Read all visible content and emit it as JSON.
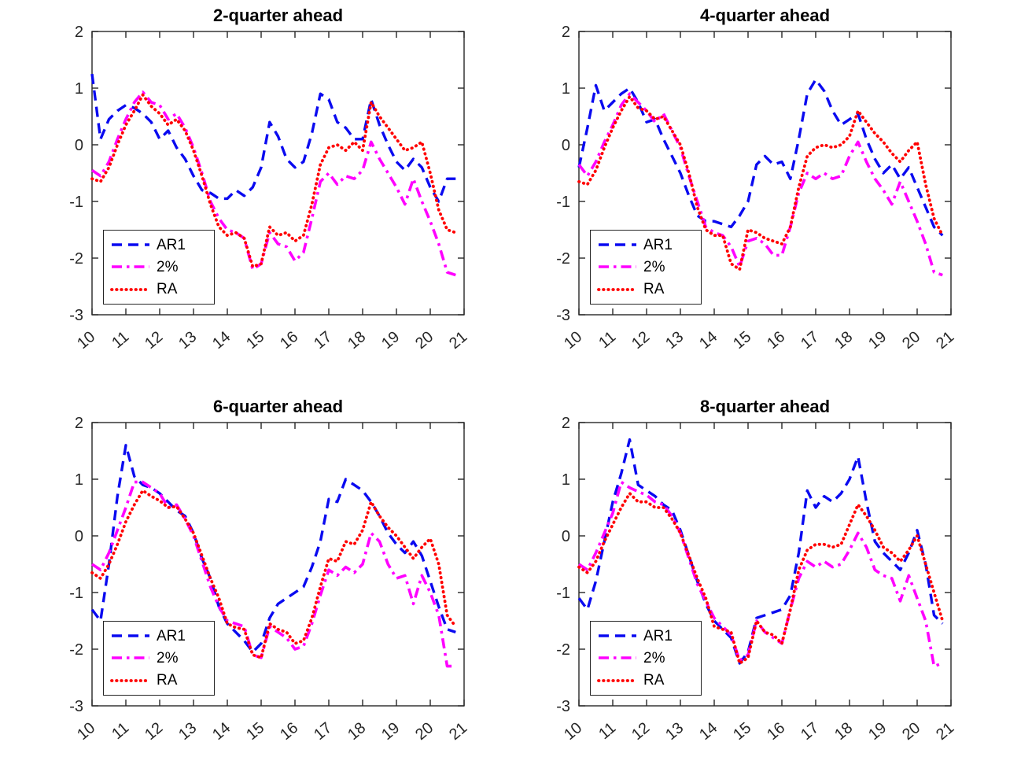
{
  "figure": {
    "background": "#ffffff",
    "axis_color": "#262626",
    "tick_label_color": "#262626",
    "title_color": "#000000"
  },
  "x_values": [
    10,
    10.25,
    10.5,
    10.75,
    11,
    11.25,
    11.5,
    11.75,
    12,
    12.25,
    12.5,
    12.75,
    13,
    13.25,
    13.5,
    13.75,
    14,
    14.25,
    14.5,
    14.75,
    15,
    15.25,
    15.5,
    15.75,
    16,
    16.25,
    16.5,
    16.75,
    17,
    17.25,
    17.5,
    17.75,
    18,
    18.25,
    18.5,
    18.75,
    19,
    19.25,
    19.5,
    19.75,
    20,
    20.25,
    20.5,
    20.75
  ],
  "chart_data": [
    {
      "type": "line",
      "title": "2-quarter ahead",
      "xlim": [
        10,
        21
      ],
      "ylim": [
        -3,
        2
      ],
      "xticks": [
        "10",
        "11",
        "12",
        "13",
        "14",
        "15",
        "16",
        "17",
        "18",
        "19",
        "20",
        "21"
      ],
      "yticks": [
        "-3",
        "-2",
        "-1",
        "0",
        "1",
        "2"
      ],
      "grid": false,
      "legend_position": "lower-left",
      "series": [
        {
          "name": "AR1",
          "color": "#0a0af0",
          "line_style": "dashed",
          "values": [
            1.25,
            0.1,
            0.45,
            0.6,
            0.7,
            0.65,
            0.55,
            0.4,
            0.1,
            0.25,
            -0.05,
            -0.25,
            -0.55,
            -0.8,
            -0.85,
            -0.95,
            -0.95,
            -0.8,
            -0.9,
            -0.75,
            -0.4,
            0.4,
            0.15,
            -0.25,
            -0.4,
            -0.3,
            0.2,
            0.9,
            0.8,
            0.4,
            0.3,
            0.1,
            0.1,
            0.8,
            0.35,
            0.0,
            -0.3,
            -0.45,
            -0.25,
            -0.4,
            -0.75,
            -1.0,
            -0.6,
            -0.6
          ]
        },
        {
          "name": "2%",
          "color": "#ff00ff",
          "line_style": "dashdot",
          "values": [
            -0.45,
            -0.55,
            -0.3,
            0.1,
            0.45,
            0.75,
            0.93,
            0.75,
            0.7,
            0.45,
            0.55,
            0.3,
            -0.05,
            -0.5,
            -1.0,
            -1.3,
            -1.5,
            -1.55,
            -1.65,
            -2.2,
            -2.1,
            -1.55,
            -1.75,
            -1.8,
            -2.05,
            -1.9,
            -1.3,
            -0.65,
            -0.5,
            -0.7,
            -0.55,
            -0.6,
            -0.45,
            0.05,
            -0.25,
            -0.5,
            -0.75,
            -1.05,
            -0.6,
            -1.0,
            -1.35,
            -1.75,
            -2.25,
            -2.3
          ]
        },
        {
          "name": "RA",
          "color": "#ff0000",
          "line_style": "dotted",
          "values": [
            -0.6,
            -0.65,
            -0.4,
            0.0,
            0.35,
            0.6,
            0.88,
            0.68,
            0.55,
            0.35,
            0.45,
            0.25,
            -0.1,
            -0.55,
            -1.05,
            -1.45,
            -1.6,
            -1.55,
            -1.65,
            -2.15,
            -2.1,
            -1.45,
            -1.6,
            -1.55,
            -1.7,
            -1.6,
            -1.05,
            -0.35,
            -0.05,
            0.0,
            -0.1,
            0.05,
            -0.1,
            0.75,
            0.5,
            0.3,
            0.1,
            -0.1,
            -0.05,
            0.05,
            -0.5,
            -1.15,
            -1.5,
            -1.55
          ]
        }
      ]
    },
    {
      "type": "line",
      "title": "4-quarter ahead",
      "xlim": [
        10,
        21
      ],
      "ylim": [
        -3,
        2
      ],
      "xticks": [
        "10",
        "11",
        "12",
        "13",
        "14",
        "15",
        "16",
        "17",
        "18",
        "19",
        "20",
        "21"
      ],
      "yticks": [
        "-3",
        "-2",
        "-1",
        "0",
        "1",
        "2"
      ],
      "grid": false,
      "legend_position": "lower-left",
      "series": [
        {
          "name": "AR1",
          "color": "#0a0af0",
          "line_style": "dashed",
          "values": [
            -0.4,
            0.3,
            1.05,
            0.6,
            0.75,
            0.9,
            1.0,
            0.75,
            0.4,
            0.45,
            0.1,
            -0.2,
            -0.5,
            -0.9,
            -1.25,
            -1.35,
            -1.35,
            -1.4,
            -1.45,
            -1.25,
            -1.0,
            -0.35,
            -0.2,
            -0.35,
            -0.3,
            -0.6,
            0.1,
            0.9,
            1.15,
            0.95,
            0.6,
            0.35,
            0.45,
            0.55,
            0.1,
            -0.25,
            -0.5,
            -0.35,
            -0.6,
            -0.4,
            -0.75,
            -1.1,
            -1.45,
            -1.6
          ]
        },
        {
          "name": "2%",
          "color": "#ff00ff",
          "line_style": "dashdot",
          "values": [
            -0.35,
            -0.55,
            -0.3,
            0.05,
            0.35,
            0.7,
            0.9,
            0.75,
            0.6,
            0.4,
            0.55,
            0.25,
            -0.05,
            -0.55,
            -1.0,
            -1.45,
            -1.55,
            -1.6,
            -1.8,
            -2.15,
            -1.7,
            -1.65,
            -1.75,
            -1.95,
            -1.95,
            -1.45,
            -0.85,
            -0.5,
            -0.6,
            -0.5,
            -0.6,
            -0.55,
            -0.2,
            0.05,
            -0.3,
            -0.6,
            -0.8,
            -1.05,
            -0.65,
            -1.0,
            -1.35,
            -1.75,
            -2.25,
            -2.3
          ]
        },
        {
          "name": "RA",
          "color": "#ff0000",
          "line_style": "dotted",
          "values": [
            -0.65,
            -0.7,
            -0.45,
            -0.05,
            0.3,
            0.6,
            0.85,
            0.65,
            0.6,
            0.45,
            0.5,
            0.25,
            0.0,
            -0.5,
            -1.1,
            -1.5,
            -1.6,
            -1.6,
            -2.1,
            -2.2,
            -1.5,
            -1.55,
            -1.65,
            -1.7,
            -1.75,
            -1.45,
            -0.75,
            -0.2,
            -0.05,
            0.0,
            -0.05,
            0.0,
            0.15,
            0.6,
            0.4,
            0.2,
            0.05,
            -0.15,
            -0.3,
            -0.1,
            0.05,
            -0.7,
            -1.3,
            -1.6
          ]
        }
      ]
    },
    {
      "type": "line",
      "title": "6-quarter ahead",
      "xlim": [
        10,
        21
      ],
      "ylim": [
        -3,
        2
      ],
      "xticks": [
        "10",
        "11",
        "12",
        "13",
        "14",
        "15",
        "16",
        "17",
        "18",
        "19",
        "20",
        "21"
      ],
      "yticks": [
        "-3",
        "-2",
        "-1",
        "0",
        "1",
        "2"
      ],
      "grid": false,
      "legend_position": "lower-left",
      "series": [
        {
          "name": "AR1",
          "color": "#0a0af0",
          "line_style": "dashed",
          "values": [
            -1.3,
            -1.5,
            -0.5,
            0.7,
            1.6,
            1.05,
            0.9,
            0.85,
            0.75,
            0.6,
            0.45,
            0.35,
            0.05,
            -0.4,
            -0.75,
            -1.25,
            -1.55,
            -1.7,
            -1.85,
            -2.05,
            -1.9,
            -1.45,
            -1.2,
            -1.1,
            -1.0,
            -0.9,
            -0.55,
            -0.1,
            0.65,
            0.6,
            1.0,
            0.9,
            0.8,
            0.6,
            0.35,
            0.05,
            -0.15,
            -0.3,
            -0.1,
            -0.35,
            -0.8,
            -1.25,
            -1.65,
            -1.7
          ]
        },
        {
          "name": "2%",
          "color": "#ff00ff",
          "line_style": "dashdot",
          "values": [
            -0.5,
            -0.6,
            -0.3,
            0.1,
            0.5,
            0.95,
            0.95,
            0.85,
            0.75,
            0.5,
            0.55,
            0.3,
            0.0,
            -0.45,
            -0.9,
            -1.25,
            -1.5,
            -1.55,
            -1.6,
            -2.1,
            -2.15,
            -1.6,
            -1.7,
            -1.8,
            -2.0,
            -1.95,
            -1.55,
            -1.05,
            -0.6,
            -0.7,
            -0.55,
            -0.65,
            -0.5,
            0.05,
            -0.1,
            -0.5,
            -0.75,
            -0.7,
            -1.2,
            -0.7,
            -1.0,
            -1.4,
            -2.3,
            -2.3
          ]
        },
        {
          "name": "RA",
          "color": "#ff0000",
          "line_style": "dotted",
          "values": [
            -0.65,
            -0.75,
            -0.5,
            -0.15,
            0.25,
            0.55,
            0.8,
            0.7,
            0.62,
            0.5,
            0.52,
            0.3,
            0.05,
            -0.35,
            -0.75,
            -1.1,
            -1.55,
            -1.62,
            -1.65,
            -2.1,
            -2.15,
            -1.55,
            -1.65,
            -1.7,
            -1.9,
            -1.85,
            -1.45,
            -0.9,
            -0.4,
            -0.45,
            -0.1,
            -0.15,
            0.1,
            0.6,
            0.35,
            0.15,
            0.0,
            -0.2,
            -0.4,
            -0.2,
            -0.05,
            -0.5,
            -1.4,
            -1.6
          ]
        }
      ]
    },
    {
      "type": "line",
      "title": "8-quarter ahead",
      "xlim": [
        10,
        21
      ],
      "ylim": [
        -3,
        2
      ],
      "xticks": [
        "10",
        "11",
        "12",
        "13",
        "14",
        "15",
        "16",
        "17",
        "18",
        "19",
        "20",
        "21"
      ],
      "yticks": [
        "-3",
        "-2",
        "-1",
        "0",
        "1",
        "2"
      ],
      "grid": false,
      "legend_position": "lower-left",
      "series": [
        {
          "name": "AR1",
          "color": "#0a0af0",
          "line_style": "dashed",
          "values": [
            -1.1,
            -1.3,
            -0.8,
            -0.1,
            0.6,
            1.1,
            1.7,
            0.9,
            0.8,
            0.7,
            0.55,
            0.45,
            0.1,
            -0.35,
            -0.8,
            -1.2,
            -1.5,
            -1.65,
            -1.8,
            -2.25,
            -2.05,
            -1.45,
            -1.4,
            -1.35,
            -1.3,
            -1.05,
            -0.3,
            0.8,
            0.5,
            0.7,
            0.6,
            0.75,
            1.0,
            1.4,
            0.6,
            -0.1,
            -0.3,
            -0.45,
            -0.6,
            -0.3,
            0.1,
            -0.5,
            -1.4,
            -1.55
          ]
        },
        {
          "name": "2%",
          "color": "#ff00ff",
          "line_style": "dashdot",
          "values": [
            -0.5,
            -0.6,
            -0.3,
            0.05,
            0.4,
            0.95,
            0.85,
            0.78,
            0.72,
            0.6,
            0.55,
            0.35,
            0.05,
            -0.4,
            -0.85,
            -1.15,
            -1.45,
            -1.6,
            -1.75,
            -2.2,
            -2.1,
            -1.5,
            -1.7,
            -1.8,
            -1.9,
            -1.3,
            -0.75,
            -0.45,
            -0.55,
            -0.45,
            -0.55,
            -0.5,
            -0.25,
            0.05,
            -0.2,
            -0.6,
            -0.7,
            -0.75,
            -1.15,
            -0.7,
            -1.1,
            -1.5,
            -2.3,
            -2.25
          ]
        },
        {
          "name": "RA",
          "color": "#ff0000",
          "line_style": "dotted",
          "values": [
            -0.55,
            -0.65,
            -0.45,
            -0.1,
            0.2,
            0.5,
            0.75,
            0.6,
            0.6,
            0.5,
            0.5,
            0.3,
            0.05,
            -0.35,
            -0.75,
            -1.1,
            -1.6,
            -1.65,
            -1.7,
            -2.25,
            -2.15,
            -1.5,
            -1.7,
            -1.75,
            -1.9,
            -1.3,
            -0.6,
            -0.25,
            -0.15,
            -0.15,
            -0.2,
            -0.15,
            0.2,
            0.55,
            0.35,
            0.1,
            -0.2,
            -0.3,
            -0.45,
            -0.25,
            0.0,
            -0.5,
            -1.0,
            -1.5
          ]
        }
      ]
    }
  ]
}
